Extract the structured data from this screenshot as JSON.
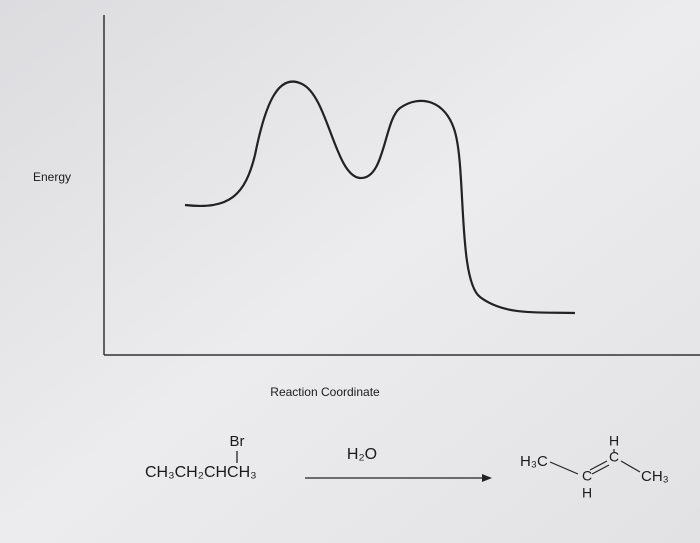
{
  "axis_labels": {
    "y": "Energy",
    "x": "Reaction Coordinate"
  },
  "reactant": {
    "substituent": "Br",
    "formula": "CH₃CH₂CHCH₃"
  },
  "reagent": "H₂O",
  "product": {
    "left_group": "H₃C",
    "carbon_1": "C",
    "hydrogen_1": "H",
    "carbon_2": "C",
    "hydrogen_2": "H",
    "right_group": "CH₃"
  }
}
